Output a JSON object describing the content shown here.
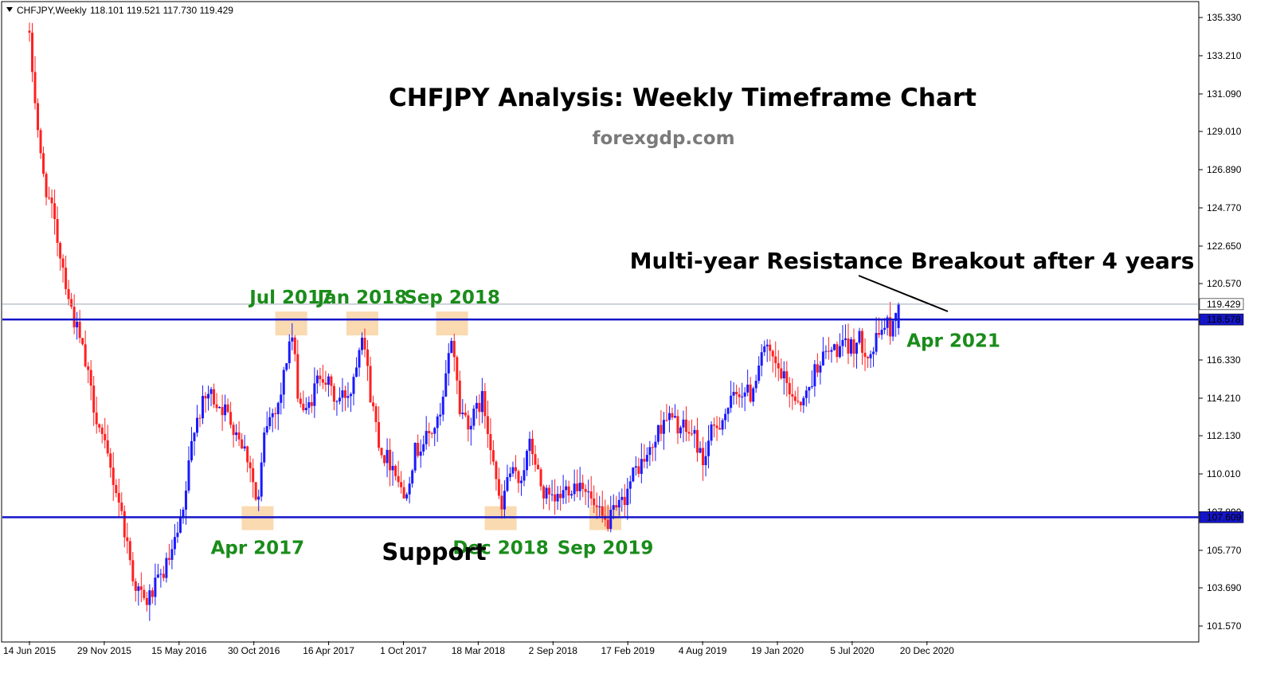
{
  "header": {
    "symbol_line": "CHFJPY,Weekly",
    "ohlc": "118.101 119.521 117.730 119.429"
  },
  "overlay": {
    "title": "CHFJPY Analysis: Weekly Timeframe Chart",
    "watermark": "forexgdp.com",
    "breakout_text": "Multi-year Resistance Breakout after 4 years",
    "support_text": "Support"
  },
  "colors": {
    "bull": "#1a1aff",
    "bear": "#ff2020",
    "level_line": "#1515c8",
    "highlight": "#f9d3a3",
    "label_green": "#1a8c1a",
    "price_tag_bg": "#1515c8"
  },
  "chart_data": {
    "type": "candlestick",
    "title": "CHFJPY Analysis: Weekly Timeframe Chart",
    "symbol": "CHFJPY",
    "timeframe": "Weekly",
    "last_bar_ohlc": {
      "open": 118.101,
      "high": 119.521,
      "low": 117.73,
      "close": 119.429
    },
    "x_ticks": [
      "14 Jun 2015",
      "29 Nov 2015",
      "15 May 2016",
      "30 Oct 2016",
      "16 Apr 2017",
      "1 Oct 2017",
      "18 Mar 2018",
      "2 Sep 2018",
      "17 Feb 2019",
      "4 Aug 2019",
      "19 Jan 2020",
      "5 Jul 2020",
      "20 Dec 2020"
    ],
    "y_ticks": [
      "135.330",
      "133.210",
      "131.090",
      "129.010",
      "126.890",
      "124.770",
      "122.650",
      "120.570",
      "118.450",
      "116.330",
      "114.210",
      "112.130",
      "110.010",
      "107.890",
      "105.770",
      "103.690",
      "101.570"
    ],
    "ylim": [
      101.0,
      136.0
    ],
    "current_price": "119.429",
    "resistance": "118.578",
    "support": "107.609",
    "price_path": [
      {
        "t": 0,
        "p": 134.0
      },
      {
        "t": 0.06,
        "p": 131.5
      },
      {
        "t": 0.16,
        "p": 127.0
      },
      {
        "t": 0.3,
        "p": 124.5
      },
      {
        "t": 0.45,
        "p": 121.5
      },
      {
        "t": 0.55,
        "p": 119.3
      },
      {
        "t": 0.7,
        "p": 117.0
      },
      {
        "t": 0.85,
        "p": 114.0
      },
      {
        "t": 1.0,
        "p": 111.5
      },
      {
        "t": 1.2,
        "p": 108.5
      },
      {
        "t": 1.4,
        "p": 104.0
      },
      {
        "t": 1.55,
        "p": 102.8
      },
      {
        "t": 1.75,
        "p": 104.2
      },
      {
        "t": 1.9,
        "p": 105.5
      },
      {
        "t": 2.05,
        "p": 107.6
      },
      {
        "t": 2.2,
        "p": 112.8
      },
      {
        "t": 2.4,
        "p": 114.5
      },
      {
        "t": 2.6,
        "p": 113.6
      },
      {
        "t": 2.8,
        "p": 112.2
      },
      {
        "t": 2.95,
        "p": 110.6
      },
      {
        "t": 3.05,
        "p": 107.9
      },
      {
        "t": 3.15,
        "p": 112.6
      },
      {
        "t": 3.35,
        "p": 114.2
      },
      {
        "t": 3.5,
        "p": 118.0
      },
      {
        "t": 3.6,
        "p": 114.2
      },
      {
        "t": 3.7,
        "p": 113.3
      },
      {
        "t": 3.9,
        "p": 115.8
      },
      {
        "t": 4.1,
        "p": 114.0
      },
      {
        "t": 4.3,
        "p": 114.7
      },
      {
        "t": 4.45,
        "p": 118.2
      },
      {
        "t": 4.55,
        "p": 114.6
      },
      {
        "t": 4.7,
        "p": 111.3
      },
      {
        "t": 4.9,
        "p": 110.3
      },
      {
        "t": 5.0,
        "p": 108.6
      },
      {
        "t": 5.15,
        "p": 111.2
      },
      {
        "t": 5.35,
        "p": 112.2
      },
      {
        "t": 5.5,
        "p": 113.1
      },
      {
        "t": 5.65,
        "p": 117.9
      },
      {
        "t": 5.75,
        "p": 113.6
      },
      {
        "t": 5.9,
        "p": 112.8
      },
      {
        "t": 6.05,
        "p": 114.2
      },
      {
        "t": 6.2,
        "p": 111.1
      },
      {
        "t": 6.3,
        "p": 107.6
      },
      {
        "t": 6.4,
        "p": 110.1
      },
      {
        "t": 6.55,
        "p": 109.6
      },
      {
        "t": 6.7,
        "p": 111.7
      },
      {
        "t": 6.85,
        "p": 109.1
      },
      {
        "t": 7.0,
        "p": 108.3
      },
      {
        "t": 7.2,
        "p": 109.3
      },
      {
        "t": 7.4,
        "p": 109.6
      },
      {
        "t": 7.55,
        "p": 108.1
      },
      {
        "t": 7.7,
        "p": 107.2
      },
      {
        "t": 7.9,
        "p": 108.2
      },
      {
        "t": 8.1,
        "p": 110.2
      },
      {
        "t": 8.3,
        "p": 111.2
      },
      {
        "t": 8.5,
        "p": 113.3
      },
      {
        "t": 8.7,
        "p": 112.6
      },
      {
        "t": 8.9,
        "p": 112.1
      },
      {
        "t": 9.0,
        "p": 110.6
      },
      {
        "t": 9.1,
        "p": 112.1
      },
      {
        "t": 9.3,
        "p": 113.4
      },
      {
        "t": 9.5,
        "p": 114.7
      },
      {
        "t": 9.65,
        "p": 114.4
      },
      {
        "t": 9.8,
        "p": 117.1
      },
      {
        "t": 10.0,
        "p": 115.8
      },
      {
        "t": 10.2,
        "p": 114.4
      },
      {
        "t": 10.35,
        "p": 114.0
      },
      {
        "t": 10.55,
        "p": 116.3
      },
      {
        "t": 10.75,
        "p": 116.9
      },
      {
        "t": 10.95,
        "p": 117.0
      },
      {
        "t": 11.1,
        "p": 117.4
      },
      {
        "t": 11.25,
        "p": 116.6
      },
      {
        "t": 11.42,
        "p": 118.4
      },
      {
        "t": 11.52,
        "p": 118.0
      },
      {
        "t": 11.62,
        "p": 119.43
      }
    ],
    "annotations": [
      {
        "label": "Jul 2017",
        "price": 118.4,
        "t": 3.5,
        "pos": "above",
        "highlight": true
      },
      {
        "label": "Jan 2018",
        "price": 118.4,
        "t": 4.45,
        "pos": "above",
        "highlight": true
      },
      {
        "label": "Sep 2018",
        "price": 118.4,
        "t": 5.65,
        "pos": "above",
        "highlight": true
      },
      {
        "label": "Apr 2017",
        "price": 107.6,
        "t": 3.05,
        "pos": "below",
        "highlight": true
      },
      {
        "label": "Dec 2018",
        "price": 107.6,
        "t": 6.3,
        "pos": "below",
        "highlight": true
      },
      {
        "label": "Sep 2019",
        "price": 107.6,
        "t": 7.7,
        "pos": "below",
        "highlight": true
      },
      {
        "label": "Apr 2021",
        "price": 118.2,
        "t": 11.6,
        "pos": "right",
        "highlight": false
      }
    ]
  }
}
